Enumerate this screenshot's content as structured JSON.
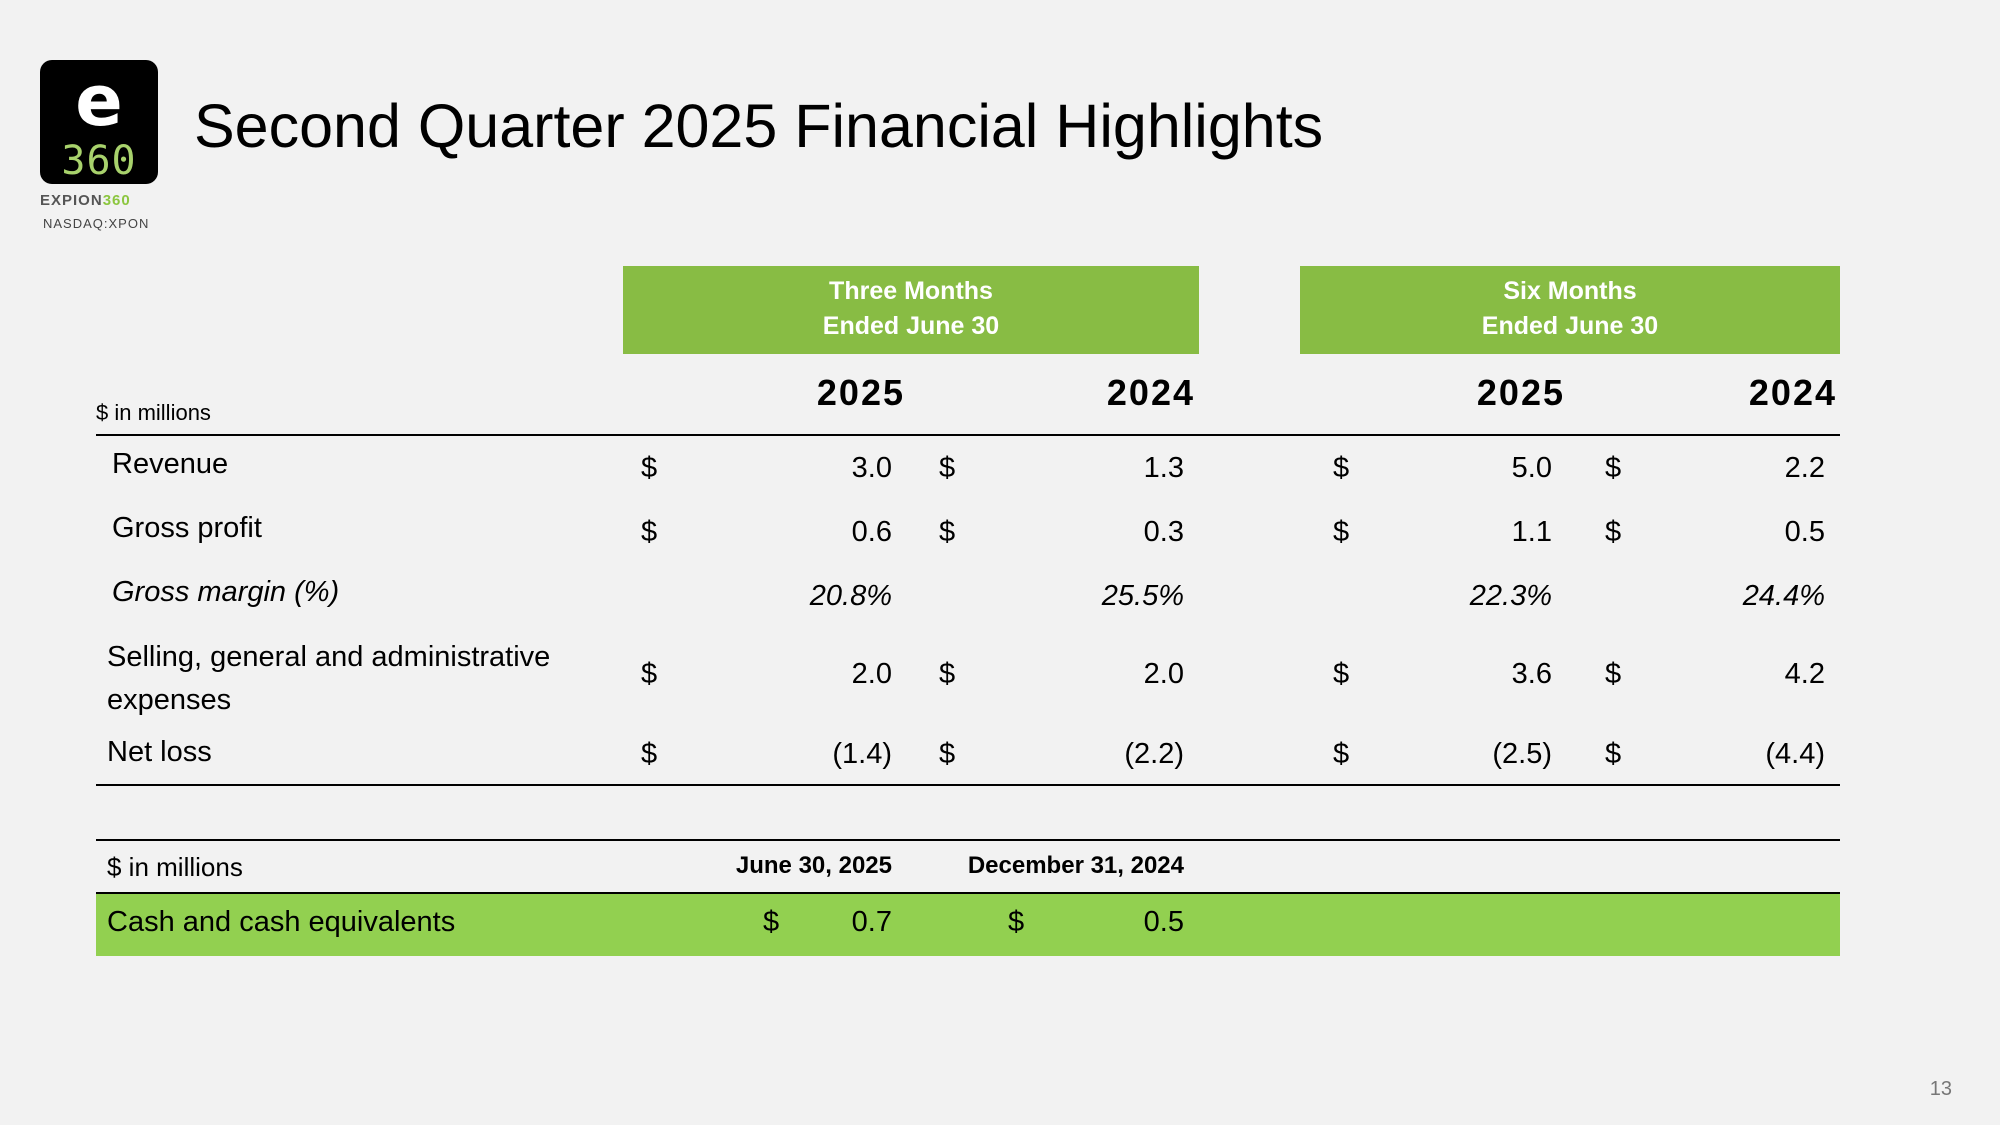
{
  "logo": {
    "glyph": "e",
    "number": "360",
    "brand_dark": "EXPION",
    "brand_green": "360",
    "ticker": "NASDAQ:XPON"
  },
  "title": "Second Quarter 2025 Financial Highlights",
  "table": {
    "units": "$ in millions",
    "groups": [
      {
        "line1": "Three Months",
        "line2": "Ended June 30"
      },
      {
        "line1": "Six Months",
        "line2": "Ended June 30"
      }
    ],
    "years": [
      "2025",
      "2024",
      "2025",
      "2024"
    ],
    "currency": "$",
    "rows": [
      {
        "label": "Revenue",
        "values": [
          "3.0",
          "1.3",
          "5.0",
          "2.2"
        ]
      },
      {
        "label": "Gross profit",
        "values": [
          "0.6",
          "0.3",
          "1.1",
          "0.5"
        ]
      },
      {
        "label": "Gross margin (%)",
        "values": [
          "20.8%",
          "25.5%",
          "22.3%",
          "24.4%"
        ]
      },
      {
        "label_line1": "Selling, general and administrative",
        "label_line2": "expenses",
        "values": [
          "2.0",
          "2.0",
          "3.6",
          "4.2"
        ]
      },
      {
        "label": "Net loss",
        "values": [
          "(1.4)",
          "(2.2)",
          "(2.5)",
          "(4.4)"
        ]
      }
    ]
  },
  "cash": {
    "units": "$ in millions",
    "col1": "June 30, 2025",
    "col2": "December 31, 2024",
    "label": "Cash and cash equivalents",
    "currency": "$",
    "values": [
      "0.7",
      "0.5"
    ]
  },
  "page_number": "13",
  "colors": {
    "header_green": "#88bc44",
    "row_green": "#92d050",
    "background": "#f2f2f2"
  }
}
